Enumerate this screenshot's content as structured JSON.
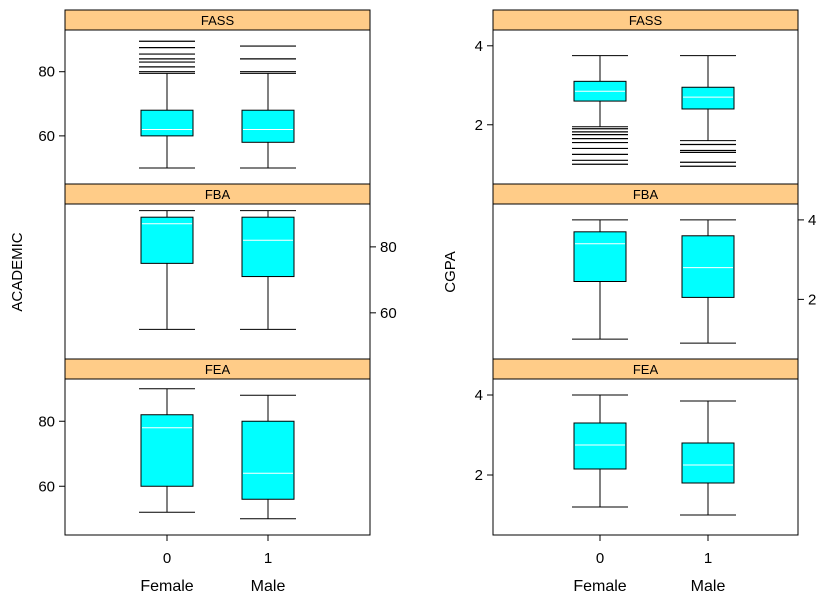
{
  "colors": {
    "strip": "#ffcc88",
    "box": "#00ffff",
    "median": "#ffffff",
    "line": "#000000"
  },
  "chart_data": [
    {
      "type": "box",
      "ylabel": "ACADEMIC",
      "x_ticks": [
        "0",
        "1"
      ],
      "x_labels": [
        "Female",
        "Male"
      ],
      "panels": [
        {
          "strip": "FASS",
          "ylim": [
            45,
            93
          ],
          "yticks": [
            60,
            80
          ],
          "axis_side": "left",
          "boxes": [
            {
              "group": "Female",
              "whisker_low": 50,
              "q1": 60,
              "median": 62,
              "q3": 68,
              "whisker_high": 79.5,
              "outliers": [
                80,
                81.5,
                83,
                84,
                85.5,
                87.5,
                89.5
              ]
            },
            {
              "group": "Male",
              "whisker_low": 50,
              "q1": 58,
              "median": 62,
              "q3": 68,
              "whisker_high": 79.5,
              "outliers": [
                80,
                84,
                88
              ]
            }
          ]
        },
        {
          "strip": "FBA",
          "ylim": [
            46,
            93
          ],
          "yticks": [
            60,
            80
          ],
          "axis_side": "right",
          "boxes": [
            {
              "group": "Female",
              "whisker_low": 55,
              "q1": 75,
              "median": 87,
              "q3": 89,
              "whisker_high": 91,
              "outliers": []
            },
            {
              "group": "Male",
              "whisker_low": 55,
              "q1": 71,
              "median": 82,
              "q3": 89,
              "whisker_high": 91,
              "outliers": []
            }
          ]
        },
        {
          "strip": "FEA",
          "ylim": [
            45,
            93
          ],
          "yticks": [
            60,
            80
          ],
          "axis_side": "left",
          "boxes": [
            {
              "group": "Female",
              "whisker_low": 52,
              "q1": 60,
              "median": 78,
              "q3": 82,
              "whisker_high": 90,
              "outliers": []
            },
            {
              "group": "Male",
              "whisker_low": 50,
              "q1": 56,
              "median": 64,
              "q3": 80,
              "whisker_high": 88,
              "outliers": []
            }
          ]
        }
      ]
    },
    {
      "type": "box",
      "ylabel": "CGPA",
      "x_ticks": [
        "0",
        "1"
      ],
      "x_labels": [
        "Female",
        "Male"
      ],
      "panels": [
        {
          "strip": "FASS",
          "ylim": [
            0.5,
            4.4
          ],
          "yticks": [
            2,
            4
          ],
          "axis_side": "left",
          "boxes": [
            {
              "group": "Female",
              "whisker_low": 1.95,
              "q1": 2.6,
              "median": 2.85,
              "q3": 3.1,
              "whisker_high": 3.75,
              "outliers": [
                1.0,
                1.1,
                1.25,
                1.4,
                1.55,
                1.65,
                1.75,
                1.82,
                1.9
              ]
            },
            {
              "group": "Male",
              "whisker_low": 1.6,
              "q1": 2.4,
              "median": 2.7,
              "q3": 2.95,
              "whisker_high": 3.75,
              "outliers": [
                0.95,
                1.05,
                1.3,
                1.35,
                1.5
              ]
            }
          ]
        },
        {
          "strip": "FBA",
          "ylim": [
            0.5,
            4.4
          ],
          "yticks": [
            2,
            4
          ],
          "axis_side": "right",
          "boxes": [
            {
              "group": "Female",
              "whisker_low": 1.0,
              "q1": 2.45,
              "median": 3.4,
              "q3": 3.7,
              "whisker_high": 4.0,
              "outliers": []
            },
            {
              "group": "Male",
              "whisker_low": 0.9,
              "q1": 2.05,
              "median": 2.8,
              "q3": 3.6,
              "whisker_high": 4.0,
              "outliers": []
            }
          ]
        },
        {
          "strip": "FEA",
          "ylim": [
            0.5,
            4.4
          ],
          "yticks": [
            2,
            4
          ],
          "axis_side": "left",
          "boxes": [
            {
              "group": "Female",
              "whisker_low": 1.2,
              "q1": 2.15,
              "median": 2.75,
              "q3": 3.3,
              "whisker_high": 4.0,
              "outliers": []
            },
            {
              "group": "Male",
              "whisker_low": 1.0,
              "q1": 1.8,
              "median": 2.25,
              "q3": 2.8,
              "whisker_high": 3.85,
              "outliers": []
            }
          ]
        }
      ]
    }
  ]
}
